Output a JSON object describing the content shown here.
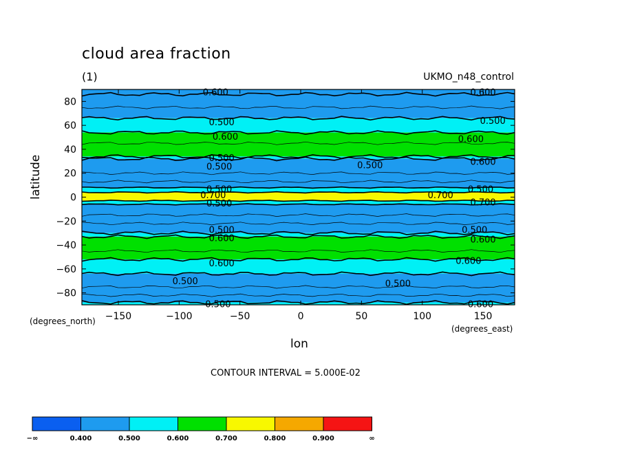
{
  "chart_data": {
    "type": "contour",
    "title": "cloud area fraction",
    "subtitle": "(1)",
    "run_name": "UKMO_n48_control",
    "xlabel": "lon",
    "ylabel": "latitude",
    "x_units": "(degrees_east)",
    "y_units": "(degrees_north)",
    "contour_note": "CONTOUR INTERVAL = 5.000E-02",
    "xlim": [
      -180,
      176
    ],
    "ylim": [
      -90,
      90
    ],
    "x_ticks": [
      -150,
      -100,
      -50,
      0,
      50,
      100,
      150
    ],
    "x_tick_labels": [
      "−150",
      "−100",
      "−50",
      "0",
      "50",
      "100",
      "150"
    ],
    "y_ticks": [
      80,
      60,
      40,
      20,
      0,
      -20,
      -40,
      -60,
      -80
    ],
    "y_tick_labels": [
      "80",
      "60",
      "40",
      "20",
      "0",
      "−20",
      "−40",
      "−60",
      "−80"
    ],
    "zonal_bands": [
      {
        "lat_from": 90,
        "lat_to": 86,
        "value": 0.45
      },
      {
        "lat_from": 86,
        "lat_to": 66,
        "value": 0.45
      },
      {
        "lat_from": 66,
        "lat_to": 54,
        "value": 0.55
      },
      {
        "lat_from": 54,
        "lat_to": 34,
        "value": 0.65
      },
      {
        "lat_from": 34,
        "lat_to": 32,
        "value": 0.55
      },
      {
        "lat_from": 32,
        "lat_to": 8,
        "value": 0.45
      },
      {
        "lat_from": 8,
        "lat_to": 4,
        "value": 0.55
      },
      {
        "lat_from": 4,
        "lat_to": -3,
        "value": 0.75
      },
      {
        "lat_from": -3,
        "lat_to": -6,
        "value": 0.55
      },
      {
        "lat_from": -6,
        "lat_to": -30,
        "value": 0.45
      },
      {
        "lat_from": -30,
        "lat_to": -33,
        "value": 0.55
      },
      {
        "lat_from": -33,
        "lat_to": -52,
        "value": 0.65
      },
      {
        "lat_from": -52,
        "lat_to": -64,
        "value": 0.55
      },
      {
        "lat_from": -64,
        "lat_to": -88,
        "value": 0.45
      },
      {
        "lat_from": -88,
        "lat_to": -90,
        "value": 0.55
      }
    ],
    "contour_labels": [
      {
        "text": "0.600",
        "lon": -70,
        "lat": 88
      },
      {
        "text": "0.600",
        "lon": 150,
        "lat": 88
      },
      {
        "text": "0.500",
        "lon": -65,
        "lat": 63
      },
      {
        "text": "0.500",
        "lon": 158,
        "lat": 64
      },
      {
        "text": "0.600",
        "lon": -62,
        "lat": 51
      },
      {
        "text": "0.600",
        "lon": 140,
        "lat": 49
      },
      {
        "text": "0.500",
        "lon": -65,
        "lat": 33
      },
      {
        "text": "0.500",
        "lon": -67,
        "lat": 26
      },
      {
        "text": "0.500",
        "lon": 57,
        "lat": 27
      },
      {
        "text": "0.600",
        "lon": 150,
        "lat": 30
      },
      {
        "text": "0.500",
        "lon": -67,
        "lat": 7
      },
      {
        "text": "0.700",
        "lon": -72,
        "lat": 2
      },
      {
        "text": "0.700",
        "lon": 115,
        "lat": 2
      },
      {
        "text": "0.500",
        "lon": 148,
        "lat": 7
      },
      {
        "text": "0.700",
        "lon": 150,
        "lat": -4
      },
      {
        "text": "0.500",
        "lon": -67,
        "lat": -5
      },
      {
        "text": "0.500",
        "lon": -65,
        "lat": -27
      },
      {
        "text": "0.600",
        "lon": -65,
        "lat": -34
      },
      {
        "text": "0.500",
        "lon": 143,
        "lat": -27
      },
      {
        "text": "0.600",
        "lon": 150,
        "lat": -35
      },
      {
        "text": "0.600",
        "lon": -65,
        "lat": -55
      },
      {
        "text": "0.600",
        "lon": 138,
        "lat": -53
      },
      {
        "text": "0.500",
        "lon": -95,
        "lat": -70
      },
      {
        "text": "0.500",
        "lon": 80,
        "lat": -72
      },
      {
        "text": "0.500",
        "lon": -68,
        "lat": -89
      },
      {
        "text": "0.600",
        "lon": 148,
        "lat": -89
      }
    ],
    "legend": {
      "labels": [
        "−∞",
        "0.400",
        "0.500",
        "0.600",
        "0.700",
        "0.800",
        "0.900",
        "∞"
      ],
      "colors": [
        "#0a5ff0",
        "#1e9bef",
        "#00f0f5",
        "#00e000",
        "#f8f800",
        "#f5a800",
        "#f51414"
      ]
    }
  }
}
